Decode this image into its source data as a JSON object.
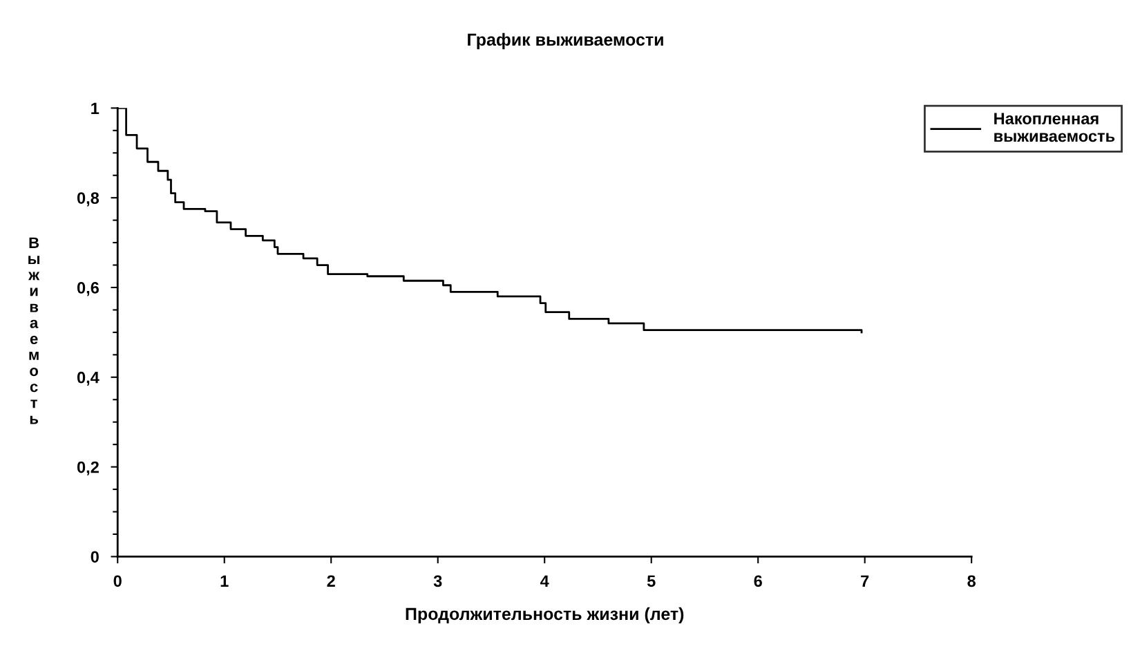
{
  "chart_data": {
    "type": "step",
    "title": "График выживаемости",
    "xlabel": "Продолжительность жизни (лет)",
    "ylabel": "Выживаемость",
    "x": [
      0,
      0.08,
      0.18,
      0.28,
      0.38,
      0.47,
      0.5,
      0.54,
      0.62,
      0.82,
      0.93,
      1.06,
      1.2,
      1.36,
      1.47,
      1.5,
      1.74,
      1.87,
      1.97,
      2.34,
      2.68,
      3.05,
      3.12,
      3.56,
      3.96,
      4.01,
      4.23,
      4.6,
      4.93,
      6.97
    ],
    "series": [
      {
        "name": "Накопленная\nвыживаемость",
        "color": "#000000",
        "values": [
          1,
          0.94,
          0.91,
          0.88,
          0.86,
          0.84,
          0.81,
          0.79,
          0.775,
          0.77,
          0.745,
          0.73,
          0.715,
          0.705,
          0.69,
          0.675,
          0.665,
          0.65,
          0.63,
          0.625,
          0.615,
          0.605,
          0.59,
          0.58,
          0.565,
          0.545,
          0.53,
          0.52,
          0.505,
          0.5
        ]
      }
    ],
    "xlim": [
      0,
      8
    ],
    "xticks": [
      0,
      1,
      2,
      3,
      4,
      5,
      6,
      7,
      8
    ],
    "ylim": [
      0,
      1
    ],
    "yticks": [
      0,
      {
        "value": 0.2,
        "label": "0,2"
      },
      {
        "value": 0.4,
        "label": "0,4"
      },
      {
        "value": 0.6,
        "label": "0,6"
      },
      {
        "value": 0.8,
        "label": "0,8"
      },
      1
    ],
    "grid": false,
    "legend": "top right",
    "line_style": "solid",
    "marker": "none"
  }
}
